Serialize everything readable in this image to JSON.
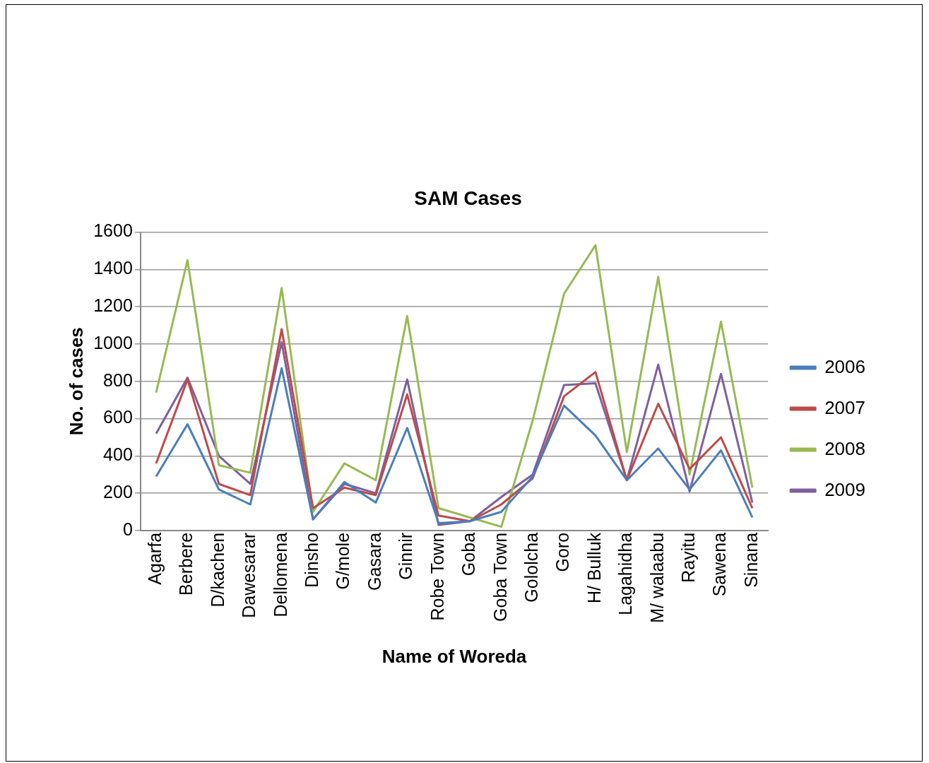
{
  "chart_data": {
    "type": "line",
    "title": "SAM Cases",
    "xlabel": "Name of Woreda",
    "ylabel": "No. of cases",
    "categories": [
      "Agarfa",
      "Berbere",
      "D/kachen",
      "Dawesarar",
      "Dellomena",
      "Dinsho",
      "G/mole",
      "Gasara",
      "Ginnir",
      "Robe Town",
      "Goba",
      "Goba Town",
      "Gololcha",
      "Goro",
      "H/ Bulluk",
      "Lagahidha",
      "M/ walaabu",
      "Rayitu",
      "Sawena",
      "Sinana"
    ],
    "series": [
      {
        "name": "2006",
        "color": "#4a7ebb",
        "values": [
          290,
          570,
          220,
          140,
          870,
          60,
          260,
          150,
          550,
          40,
          50,
          100,
          290,
          670,
          510,
          270,
          440,
          220,
          430,
          70
        ]
      },
      {
        "name": "2007",
        "color": "#be4b48",
        "values": [
          360,
          810,
          250,
          190,
          1080,
          120,
          230,
          190,
          730,
          80,
          50,
          140,
          280,
          720,
          850,
          270,
          680,
          330,
          500,
          120
        ]
      },
      {
        "name": "2008",
        "color": "#98b954",
        "values": [
          740,
          1450,
          350,
          310,
          1300,
          100,
          360,
          270,
          1150,
          120,
          70,
          20,
          590,
          1270,
          1530,
          420,
          1360,
          300,
          1120,
          230
        ]
      },
      {
        "name": "2009",
        "color": "#7d60a0",
        "values": [
          520,
          820,
          400,
          250,
          1010,
          60,
          250,
          200,
          810,
          30,
          50,
          180,
          300,
          780,
          790,
          270,
          890,
          210,
          840,
          150
        ]
      }
    ],
    "ylim": [
      0,
      1600
    ],
    "yticks": [
      0,
      200,
      400,
      600,
      800,
      1000,
      1200,
      1400,
      1600
    ],
    "grid": "y",
    "legend": "right",
    "marker": "none",
    "line_style": "solid"
  }
}
